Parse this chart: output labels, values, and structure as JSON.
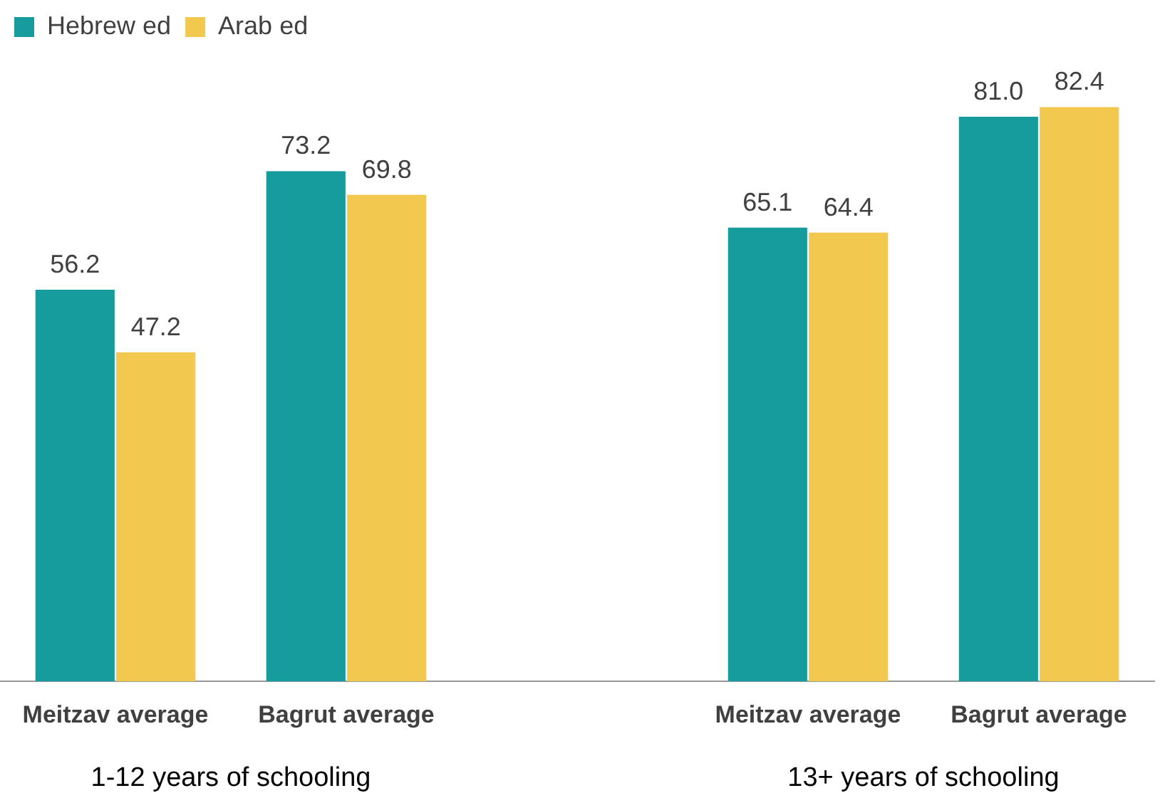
{
  "chart_data": {
    "type": "bar",
    "categories": [
      "Meitzav average",
      "Bagrut average",
      null,
      "Meitzav average",
      "Bagrut average"
    ],
    "series": [
      {
        "name": "Hebrew ed",
        "color": "#169c9c",
        "values": [
          56.2,
          73.2,
          null,
          65.1,
          81.0
        ],
        "value_labels": [
          "56.2",
          "73.2",
          null,
          "65.1",
          "81.0"
        ]
      },
      {
        "name": "Arab ed",
        "color": "#f2c84e",
        "values": [
          47.2,
          69.8,
          null,
          64.4,
          82.4
        ],
        "value_labels": [
          "47.2",
          "69.8",
          null,
          "64.4",
          "82.4"
        ]
      }
    ],
    "legend": "top left",
    "grid": false,
    "annotations": [
      "1-12 years of schooling",
      "13+ years of schooling"
    ]
  }
}
